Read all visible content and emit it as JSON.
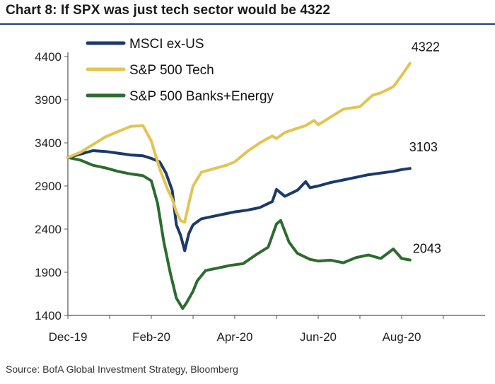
{
  "title": "Chart 8: If SPX was just tech sector would be 4322",
  "source": "Source: BofA Global Investment Strategy, Bloomberg",
  "chart_data": {
    "type": "line",
    "title": "Chart 8: If SPX was just tech sector would be 4322",
    "xlabel": "",
    "ylabel": "",
    "ylim": [
      1400,
      4400
    ],
    "yticks": [
      "1400",
      "1900",
      "2400",
      "2900",
      "3400",
      "3900",
      "4400"
    ],
    "xticks": [
      "Dec-19",
      "Feb-20",
      "Apr-20",
      "Jun-20",
      "Aug-20"
    ],
    "xtick_positions": [
      0,
      2,
      4,
      6,
      8
    ],
    "xlim": [
      0,
      10
    ],
    "legend_position": "top-left",
    "grid": false,
    "series": [
      {
        "name": "MSCI ex-US",
        "color": "#1b3a6b",
        "end_label": "3103",
        "x": [
          0,
          0.3,
          0.6,
          0.9,
          1.2,
          1.5,
          1.8,
          2.0,
          2.2,
          2.35,
          2.5,
          2.6,
          2.7,
          2.8,
          2.9,
          3.0,
          3.2,
          3.5,
          3.8,
          4.0,
          4.3,
          4.6,
          4.9,
          5.0,
          5.2,
          5.5,
          5.7,
          5.8,
          6.0,
          6.3,
          6.6,
          7.0,
          7.2,
          7.5,
          7.8,
          8.0,
          8.2
        ],
        "y": [
          3230,
          3270,
          3310,
          3300,
          3280,
          3260,
          3250,
          3220,
          3180,
          3050,
          2850,
          2450,
          2330,
          2150,
          2350,
          2450,
          2520,
          2550,
          2580,
          2600,
          2620,
          2650,
          2720,
          2860,
          2780,
          2850,
          2950,
          2880,
          2900,
          2940,
          2970,
          3010,
          3030,
          3050,
          3070,
          3090,
          3103
        ]
      },
      {
        "name": "S&P 500 Tech",
        "color": "#e3c451",
        "end_label": "4322",
        "x": [
          0,
          0.3,
          0.6,
          0.9,
          1.2,
          1.5,
          1.8,
          2.0,
          2.2,
          2.4,
          2.5,
          2.6,
          2.7,
          2.8,
          2.9,
          3.0,
          3.2,
          3.5,
          3.8,
          4.0,
          4.3,
          4.6,
          4.9,
          5.0,
          5.2,
          5.5,
          5.7,
          5.9,
          6.0,
          6.3,
          6.6,
          7.0,
          7.3,
          7.5,
          7.8,
          8.0,
          8.2
        ],
        "y": [
          3230,
          3290,
          3380,
          3470,
          3530,
          3590,
          3600,
          3420,
          3100,
          2850,
          2750,
          2600,
          2500,
          2480,
          2700,
          2900,
          3060,
          3100,
          3140,
          3180,
          3300,
          3400,
          3480,
          3450,
          3520,
          3570,
          3600,
          3660,
          3610,
          3700,
          3790,
          3820,
          3950,
          3980,
          4050,
          4180,
          4322
        ]
      },
      {
        "name": "S&P 500 Banks+Energy",
        "color": "#2d6b2f",
        "end_label": "2043",
        "x": [
          0,
          0.3,
          0.6,
          0.9,
          1.2,
          1.5,
          1.8,
          2.0,
          2.15,
          2.3,
          2.45,
          2.6,
          2.75,
          2.85,
          3.0,
          3.1,
          3.3,
          3.6,
          3.9,
          4.2,
          4.5,
          4.8,
          5.0,
          5.1,
          5.3,
          5.5,
          5.8,
          6.0,
          6.3,
          6.6,
          6.9,
          7.2,
          7.5,
          7.8,
          8.0,
          8.2
        ],
        "y": [
          3230,
          3200,
          3140,
          3110,
          3070,
          3040,
          3020,
          2960,
          2700,
          2250,
          1900,
          1600,
          1480,
          1550,
          1680,
          1800,
          1920,
          1950,
          1980,
          2000,
          2100,
          2190,
          2460,
          2500,
          2250,
          2120,
          2050,
          2030,
          2040,
          2010,
          2070,
          2100,
          2060,
          2170,
          2060,
          2043
        ]
      }
    ]
  }
}
